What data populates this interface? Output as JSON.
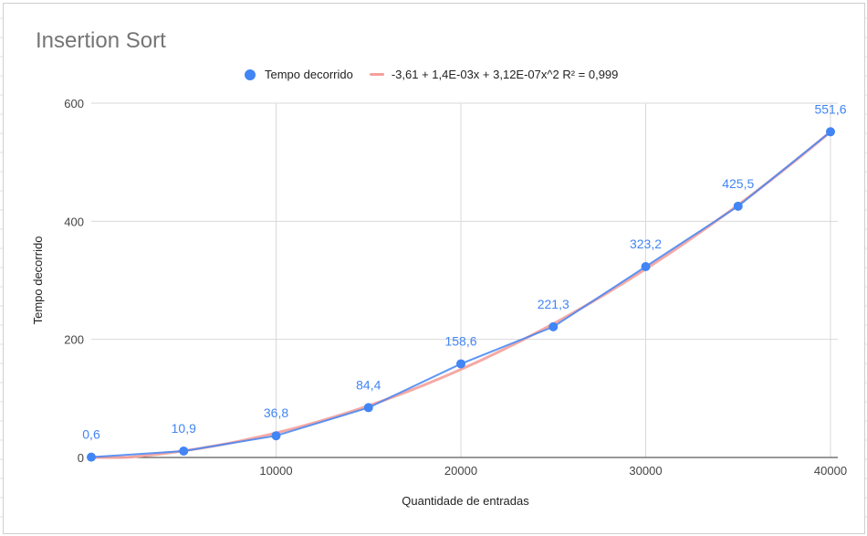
{
  "chart_data": {
    "type": "scatter",
    "title": "Insertion Sort",
    "xlabel": "Quantidade de entradas",
    "ylabel": "Tempo decorrido",
    "xlim": [
      0,
      40000
    ],
    "ylim": [
      0,
      600
    ],
    "x_ticks": [
      "10000",
      "20000",
      "30000",
      "40000"
    ],
    "y_ticks": [
      "0",
      "200",
      "400",
      "600"
    ],
    "grid": true,
    "legend_position": "top",
    "series": [
      {
        "name": "Tempo decorrido",
        "color": "#4285f4",
        "x": [
          0,
          5000,
          10000,
          15000,
          20000,
          25000,
          30000,
          35000,
          40000
        ],
        "y": [
          0.6,
          10.9,
          36.8,
          84.4,
          158.6,
          221.3,
          323.2,
          425.5,
          551.6
        ],
        "data_labels": [
          "0,6",
          "10,9",
          "36,8",
          "84,4",
          "158,6",
          "221,3",
          "323,2",
          "425,5",
          "551,6"
        ]
      }
    ],
    "trendline": {
      "label": "-3,61 + 1,4E-03x + 3,12E-07x^2 R² = 0,999",
      "type": "polynomial",
      "coefficients": [
        -3.61,
        0.0014,
        3.12e-07
      ],
      "color": "#f4a09a"
    }
  }
}
